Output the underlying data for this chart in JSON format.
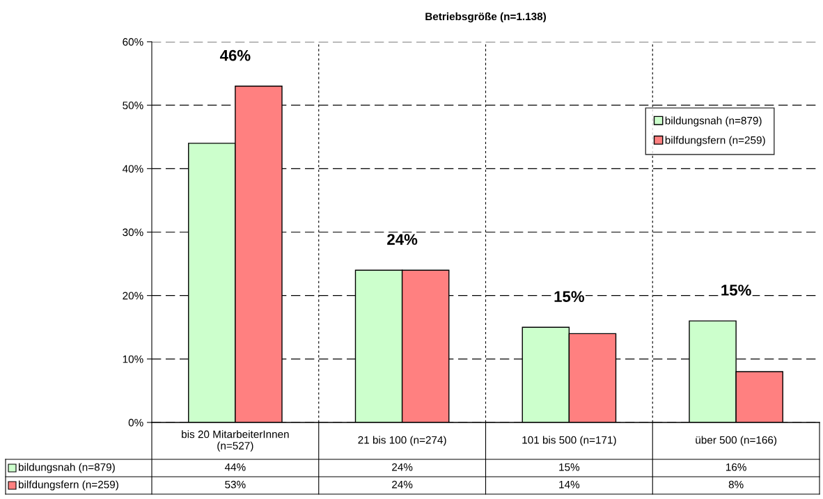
{
  "chart_data": {
    "type": "bar",
    "title": "Betriebsgröße (n=1.138)",
    "categories": [
      "bis 20 MitarbeiterInnen\n(n=527)",
      "21 bis 100 (n=274)",
      "101 bis 500 (n=171)",
      "über 500 (n=166)"
    ],
    "series": [
      {
        "name": "bildungsnah (n=879)",
        "color": "#ccffcc",
        "values": [
          44,
          24,
          15,
          16
        ]
      },
      {
        "name": "bilfdungsfern (n=259)",
        "color": "#ff8080",
        "values": [
          53,
          24,
          14,
          8
        ]
      }
    ],
    "ylim": [
      0,
      60
    ],
    "yticks": [
      {
        "value": 0,
        "label": "0%"
      },
      {
        "value": 10,
        "label": "10%"
      },
      {
        "value": 20,
        "label": "20%"
      },
      {
        "value": 30,
        "label": "30%"
      },
      {
        "value": 40,
        "label": "40%"
      },
      {
        "value": 50,
        "label": "50%"
      },
      {
        "value": 60,
        "label": "60%"
      }
    ],
    "value_labels": [
      [
        "44%",
        "24%",
        "15%",
        "16%"
      ],
      [
        "53%",
        "24%",
        "14%",
        "8%"
      ]
    ],
    "annotations": [
      "46%",
      "24%",
      "15%",
      "15%"
    ],
    "grid": true,
    "legend": "top right"
  }
}
